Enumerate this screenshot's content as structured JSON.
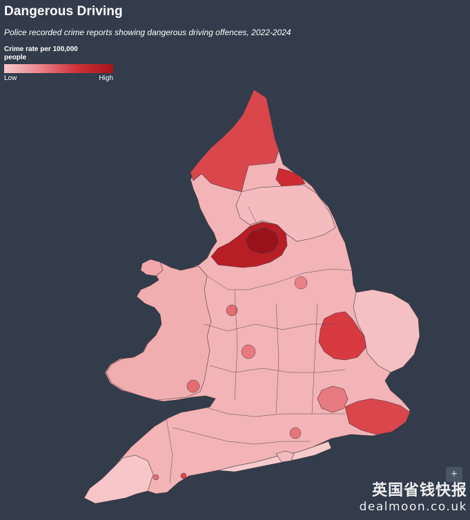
{
  "header": {
    "title": "Dangerous Driving",
    "subtitle": "Police recorded crime reports showing dangerous driving offences, 2022-2024"
  },
  "legend": {
    "title": "Crime rate per 100,000 people",
    "low_label": "Low",
    "high_label": "High",
    "colors": [
      "#f7c9cb",
      "#e98288",
      "#cf3037",
      "#a8141c"
    ]
  },
  "map": {
    "land_color": "#f2b4b6",
    "border_color": "#4a3a40",
    "highlighted_regions": [
      {
        "name_icon": "north-east-region",
        "level": "high"
      },
      {
        "name_icon": "lancashire-region",
        "level": "very-high"
      },
      {
        "name_icon": "east-anglia-region",
        "level": "high"
      },
      {
        "name_icon": "kent-region",
        "level": "high"
      }
    ]
  },
  "controls": {
    "zoom_in_label": "+"
  },
  "watermark": {
    "line1": "英国省钱快报",
    "line2": "dealmoon.co.uk"
  }
}
